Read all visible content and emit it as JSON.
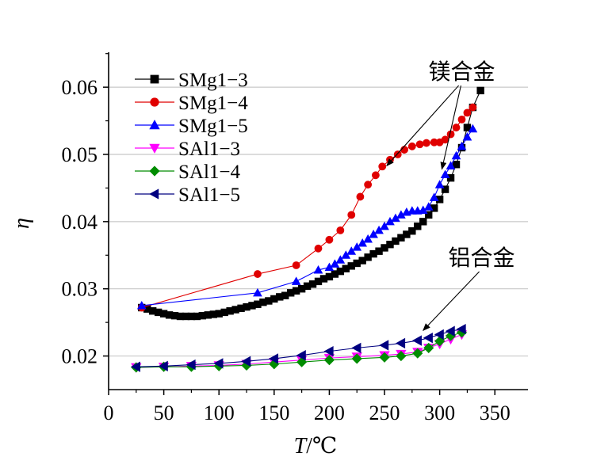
{
  "chart_data": {
    "type": "scatter",
    "xlabel_var": "T",
    "xlabel_unit": "/℃",
    "ylabel": "η",
    "xlim": [
      0,
      380
    ],
    "ylim": [
      0.015,
      0.0652
    ],
    "xticks": [
      0,
      50,
      100,
      150,
      200,
      250,
      300,
      350
    ],
    "yticks": [
      0.02,
      0.03,
      0.04,
      0.05,
      0.06
    ],
    "ytick_labels": [
      "0.02",
      "0.03",
      "0.04",
      "0.05",
      "0.06"
    ],
    "grid": "horizontal",
    "legend_position": "top-left",
    "annotations": [
      {
        "text": "镁合金",
        "label_at": [
          320,
          0.0612
        ],
        "arrows_to": [
          [
            252,
            0.0483
          ],
          [
            302,
            0.0478
          ]
        ]
      },
      {
        "text": "铝合金",
        "label_at": [
          338,
          0.0335
        ],
        "arrows_to": [
          [
            285,
            0.0238
          ]
        ]
      }
    ],
    "series": [
      {
        "name": "SMg1−3",
        "color": "#000000",
        "marker": "square",
        "x": [
          30,
          35,
          40,
          45,
          50,
          55,
          60,
          65,
          70,
          75,
          80,
          85,
          90,
          95,
          100,
          105,
          110,
          115,
          120,
          125,
          130,
          135,
          140,
          145,
          150,
          155,
          160,
          165,
          170,
          175,
          180,
          185,
          190,
          195,
          200,
          205,
          210,
          215,
          220,
          225,
          230,
          235,
          240,
          245,
          250,
          255,
          260,
          265,
          270,
          275,
          280,
          285,
          290,
          295,
          300,
          305,
          310,
          315,
          320,
          325,
          330,
          337
        ],
        "y": [
          0.0272,
          0.027,
          0.0267,
          0.0265,
          0.0263,
          0.0261,
          0.026,
          0.0259,
          0.0259,
          0.0259,
          0.0259,
          0.026,
          0.0261,
          0.0262,
          0.0263,
          0.0265,
          0.0267,
          0.0269,
          0.0271,
          0.0273,
          0.0275,
          0.0277,
          0.028,
          0.0282,
          0.0285,
          0.0288,
          0.029,
          0.0294,
          0.0297,
          0.03,
          0.0304,
          0.0307,
          0.0311,
          0.0315,
          0.0318,
          0.0322,
          0.0326,
          0.033,
          0.0334,
          0.0338,
          0.0342,
          0.0347,
          0.0352,
          0.0356,
          0.0361,
          0.0366,
          0.0371,
          0.0376,
          0.0381,
          0.0386,
          0.0393,
          0.04,
          0.041,
          0.042,
          0.0433,
          0.0448,
          0.0465,
          0.0485,
          0.051,
          0.054,
          0.057,
          0.0595
        ]
      },
      {
        "name": "SMg1−4",
        "color": "#e00000",
        "marker": "circle",
        "x": [
          30,
          135,
          170,
          190,
          200,
          210,
          220,
          228,
          235,
          242,
          248,
          255,
          262,
          268,
          275,
          282,
          288,
          295,
          300,
          305,
          310,
          315,
          320,
          325,
          330
        ],
        "y": [
          0.0272,
          0.0322,
          0.0335,
          0.036,
          0.0373,
          0.0387,
          0.041,
          0.0437,
          0.0455,
          0.0469,
          0.0482,
          0.0492,
          0.05,
          0.0507,
          0.0512,
          0.0515,
          0.0517,
          0.0518,
          0.0518,
          0.0522,
          0.053,
          0.054,
          0.0552,
          0.0562,
          0.057
        ]
      },
      {
        "name": "SMg1−5",
        "color": "#0000ff",
        "marker": "triangle-up",
        "x": [
          30,
          135,
          170,
          190,
          200,
          205,
          210,
          215,
          220,
          225,
          230,
          235,
          240,
          245,
          250,
          255,
          260,
          265,
          270,
          275,
          280,
          285,
          290,
          295,
          300,
          305,
          310,
          315,
          320,
          325,
          330
        ],
        "y": [
          0.0275,
          0.0294,
          0.0311,
          0.0328,
          0.0332,
          0.0337,
          0.0343,
          0.035,
          0.0356,
          0.0362,
          0.0368,
          0.0374,
          0.0381,
          0.0387,
          0.0393,
          0.04,
          0.0405,
          0.041,
          0.0414,
          0.0416,
          0.0416,
          0.0417,
          0.0422,
          0.0436,
          0.0455,
          0.047,
          0.0483,
          0.0498,
          0.0512,
          0.0526,
          0.0538
        ]
      },
      {
        "name": "SAl1−3",
        "color": "#ff00ff",
        "marker": "triangle-down",
        "x": [
          25,
          50,
          75,
          100,
          125,
          150,
          175,
          200,
          225,
          250,
          265,
          280,
          290,
          300,
          310,
          320
        ],
        "y": [
          0.0183,
          0.0184,
          0.0185,
          0.0186,
          0.0188,
          0.0191,
          0.0194,
          0.0197,
          0.0199,
          0.0201,
          0.0203,
          0.0206,
          0.0212,
          0.0218,
          0.0225,
          0.0232
        ]
      },
      {
        "name": "SAl1−4",
        "color": "#008c00",
        "marker": "diamond",
        "x": [
          25,
          50,
          75,
          100,
          125,
          150,
          175,
          200,
          225,
          250,
          265,
          280,
          290,
          300,
          310,
          320
        ],
        "y": [
          0.0183,
          0.0184,
          0.0184,
          0.0185,
          0.0186,
          0.0188,
          0.0191,
          0.0194,
          0.0196,
          0.0198,
          0.02,
          0.0204,
          0.0212,
          0.0222,
          0.023,
          0.0235
        ]
      },
      {
        "name": "SAl1−5",
        "color": "#000080",
        "marker": "triangle-left",
        "x": [
          25,
          50,
          75,
          100,
          125,
          150,
          175,
          200,
          225,
          250,
          265,
          280,
          290,
          300,
          310,
          320
        ],
        "y": [
          0.0184,
          0.0185,
          0.0187,
          0.0189,
          0.0192,
          0.0196,
          0.0201,
          0.0207,
          0.0212,
          0.0216,
          0.0219,
          0.0223,
          0.0227,
          0.0232,
          0.0237,
          0.024
        ]
      }
    ]
  }
}
